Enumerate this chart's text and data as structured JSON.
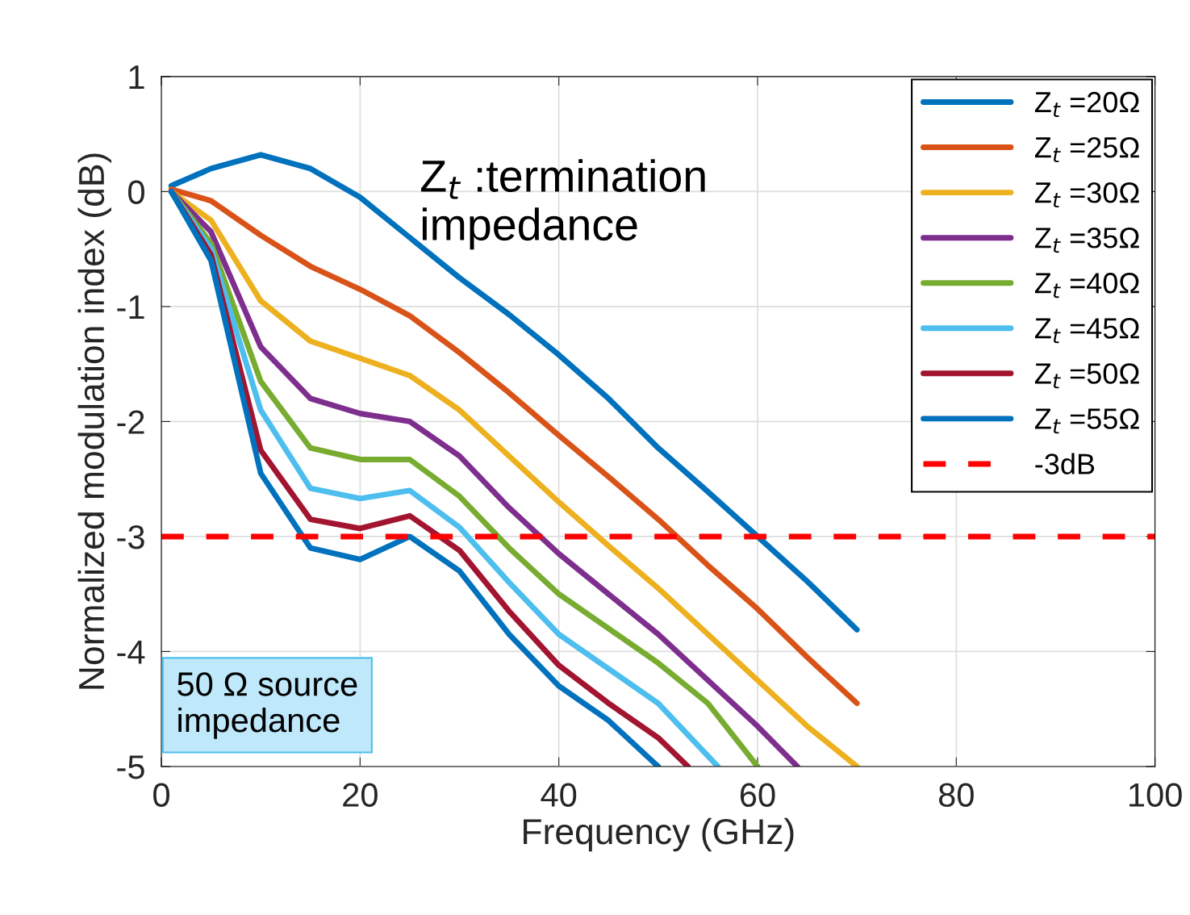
{
  "chart_data": {
    "type": "line",
    "xlabel": "Frequency (GHz)",
    "ylabel": "Normalized modulation index (dB)",
    "x": [
      1,
      5,
      10,
      15,
      20,
      25,
      30,
      35,
      40,
      45,
      50,
      55,
      60,
      65,
      70
    ],
    "series": [
      {
        "name": "Z$_{t}$ =20Ω",
        "color": "#0072bd",
        "values": [
          0.05,
          0.2,
          0.32,
          0.2,
          -0.05,
          -0.4,
          -0.75,
          -1.07,
          -1.42,
          -1.8,
          -2.23,
          -2.61,
          -3.0,
          -3.39,
          -3.81
        ]
      },
      {
        "name": "Z$_{t}$ =25Ω",
        "color": "#d95319",
        "values": [
          0.02,
          -0.08,
          -0.38,
          -0.65,
          -0.85,
          -1.08,
          -1.4,
          -1.75,
          -2.12,
          -2.48,
          -2.85,
          -3.25,
          -3.63,
          -4.05,
          -4.45
        ]
      },
      {
        "name": "Z$_{t}$ =30Ω",
        "color": "#edb120",
        "values": [
          0,
          -0.25,
          -0.95,
          -1.3,
          -1.45,
          -1.6,
          -1.9,
          -2.3,
          -2.7,
          -3.08,
          -3.45,
          -3.85,
          -4.25,
          -4.65,
          -5.0
        ]
      },
      {
        "name": "Z$_{t}$ =35Ω",
        "color": "#7e2f8e",
        "x": [
          1,
          5,
          10,
          15,
          20,
          25,
          30,
          35,
          40,
          45,
          50,
          55,
          60,
          64
        ],
        "values": [
          0,
          -0.35,
          -1.35,
          -1.8,
          -1.93,
          -2.0,
          -2.3,
          -2.75,
          -3.15,
          -3.5,
          -3.85,
          -4.25,
          -4.65,
          -5.0
        ]
      },
      {
        "name": "Z$_{t}$ =40Ω",
        "color": "#77ac30",
        "x": [
          1,
          5,
          10,
          15,
          20,
          25,
          30,
          35,
          40,
          45,
          50,
          55,
          60
        ],
        "values": [
          0,
          -0.45,
          -1.65,
          -2.23,
          -2.33,
          -2.33,
          -2.65,
          -3.1,
          -3.5,
          -3.8,
          -4.1,
          -4.45,
          -5.0
        ]
      },
      {
        "name": "Z$_{t}$ =45Ω",
        "color": "#4dbeee",
        "x": [
          1,
          5,
          10,
          15,
          20,
          25,
          30,
          35,
          40,
          45,
          50,
          56
        ],
        "values": [
          0,
          -0.5,
          -1.9,
          -2.58,
          -2.67,
          -2.6,
          -2.92,
          -3.4,
          -3.85,
          -4.15,
          -4.45,
          -5.0
        ]
      },
      {
        "name": "Z$_{t}$ =50Ω",
        "color": "#a2142f",
        "x": [
          1,
          5,
          10,
          15,
          20,
          25,
          30,
          35,
          40,
          45,
          50,
          53
        ],
        "values": [
          0,
          -0.55,
          -2.25,
          -2.85,
          -2.93,
          -2.82,
          -3.12,
          -3.65,
          -4.12,
          -4.45,
          -4.75,
          -5.0
        ]
      },
      {
        "name": "Z$_{t}$ =55Ω",
        "color": "#0072bd",
        "x": [
          1,
          5,
          10,
          15,
          20,
          25,
          30,
          35,
          40,
          45,
          50
        ],
        "values": [
          0,
          -0.6,
          -2.45,
          -3.1,
          -3.2,
          -3.0,
          -3.3,
          -3.85,
          -4.3,
          -4.6,
          -5.0
        ]
      }
    ],
    "ref_lines": [
      {
        "axis": "y",
        "value": -3,
        "label": "-3dB",
        "color": "#ff0000",
        "line_style": "dashed"
      }
    ],
    "annotations": [
      "Z$_{t}$ :termination\nimpedance",
      "50 Ω source\nimpedance"
    ],
    "xlim": [
      0,
      100
    ],
    "xticks": [
      0,
      20,
      40,
      60,
      80,
      100
    ],
    "ylim": [
      -5,
      1
    ],
    "yticks": [
      1,
      0,
      -1,
      -2,
      -3,
      -4,
      -5
    ],
    "grid": true,
    "legend": "top right",
    "line_style": "solid",
    "marker": "none"
  }
}
